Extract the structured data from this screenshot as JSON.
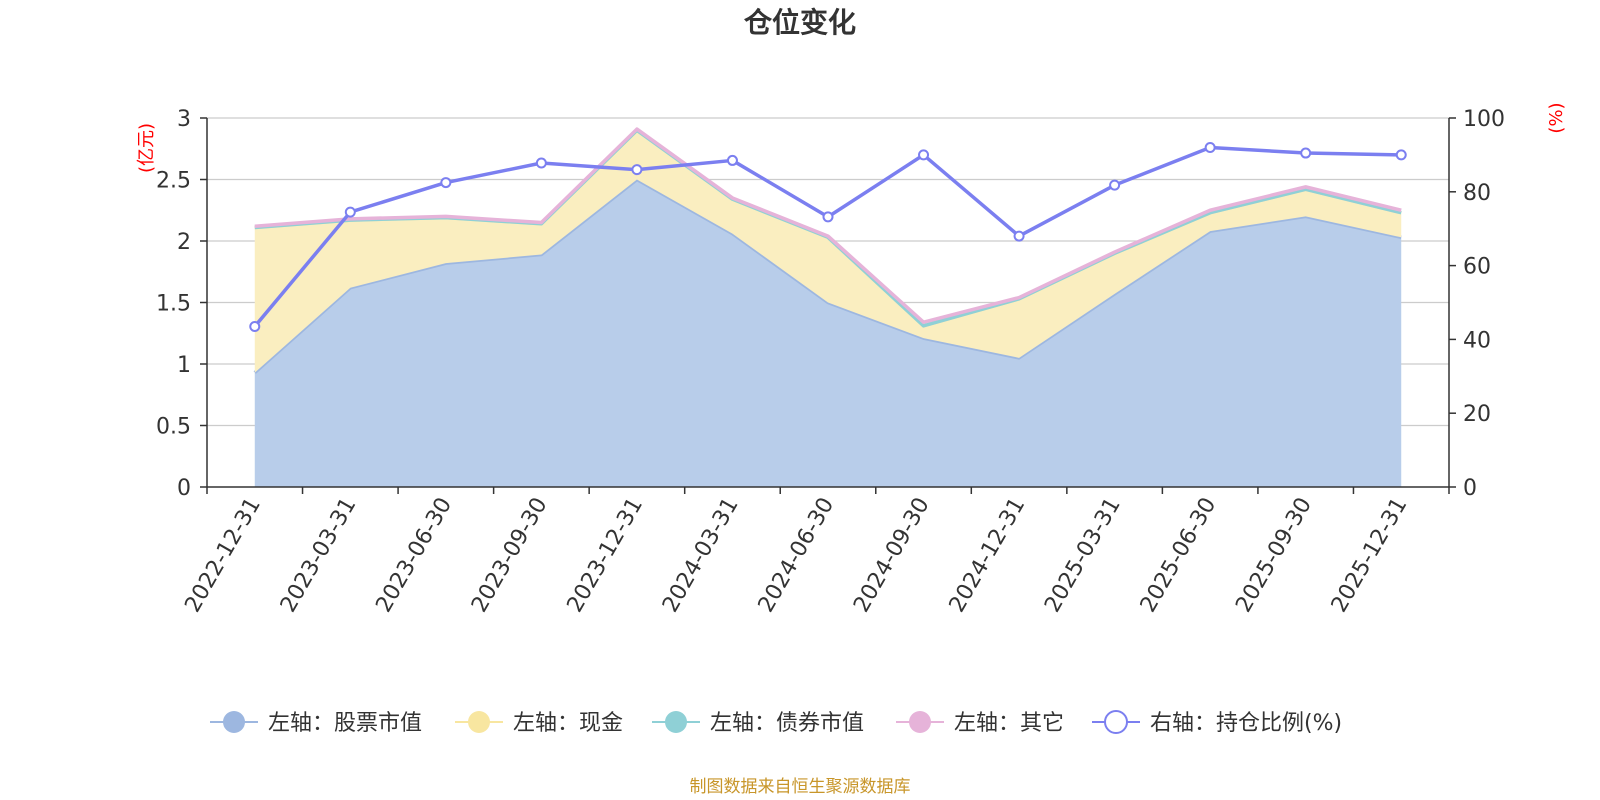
{
  "chart_data": {
    "type": "area",
    "title": "仓位变化",
    "source": "制图数据来自恒生聚源数据库",
    "left_axis": {
      "unit": "(亿元)",
      "min": 0,
      "max": 3,
      "ticks": [
        "0",
        "0.5",
        "1",
        "1.5",
        "2",
        "2.5",
        "3"
      ]
    },
    "right_axis": {
      "unit": "(%)",
      "min": 0,
      "max": 100,
      "ticks": [
        "0",
        "20",
        "40",
        "60",
        "80",
        "100"
      ]
    },
    "categories": [
      "2022-12-31",
      "2023-03-31",
      "2023-06-30",
      "2023-09-30",
      "2023-12-31",
      "2024-03-31",
      "2024-06-30",
      "2024-09-30",
      "2024-12-31",
      "2025-03-31",
      "2025-06-30",
      "2025-09-30",
      "2025-12-31"
    ],
    "series": [
      {
        "name": "左轴：股票市值",
        "axis": "left",
        "color": "#9db7e0",
        "fill": "#b8cdea",
        "values": [
          0.93,
          1.62,
          1.82,
          1.89,
          2.5,
          2.06,
          1.5,
          1.21,
          1.05,
          1.57,
          2.08,
          2.2,
          2.03
        ]
      },
      {
        "name": "左轴：现金",
        "axis": "left",
        "color": "#f8e6a0",
        "fill": "#faeec0",
        "values": [
          1.18,
          0.55,
          0.37,
          0.25,
          0.4,
          0.28,
          0.53,
          0.1,
          0.48,
          0.33,
          0.15,
          0.22,
          0.2
        ]
      },
      {
        "name": "左轴：债券市值",
        "axis": "left",
        "color": "#8fd0d6",
        "values": [
          0,
          0,
          0,
          0,
          0,
          0,
          0,
          0,
          0,
          0,
          0,
          0,
          0
        ]
      },
      {
        "name": "左轴：其它",
        "axis": "left",
        "color": "#e6b3d9",
        "values": [
          0.01,
          0.01,
          0.01,
          0.01,
          0.01,
          0.01,
          0.01,
          0.03,
          0.01,
          0.01,
          0.02,
          0.02,
          0.02
        ]
      },
      {
        "name": "右轴：持仓比例(%)",
        "axis": "right",
        "color": "#7b7ff0",
        "values": [
          43.5,
          74.5,
          82.5,
          87.8,
          86.0,
          88.5,
          73.2,
          90.0,
          68.0,
          81.8,
          92.0,
          90.5,
          90.0
        ]
      }
    ]
  }
}
